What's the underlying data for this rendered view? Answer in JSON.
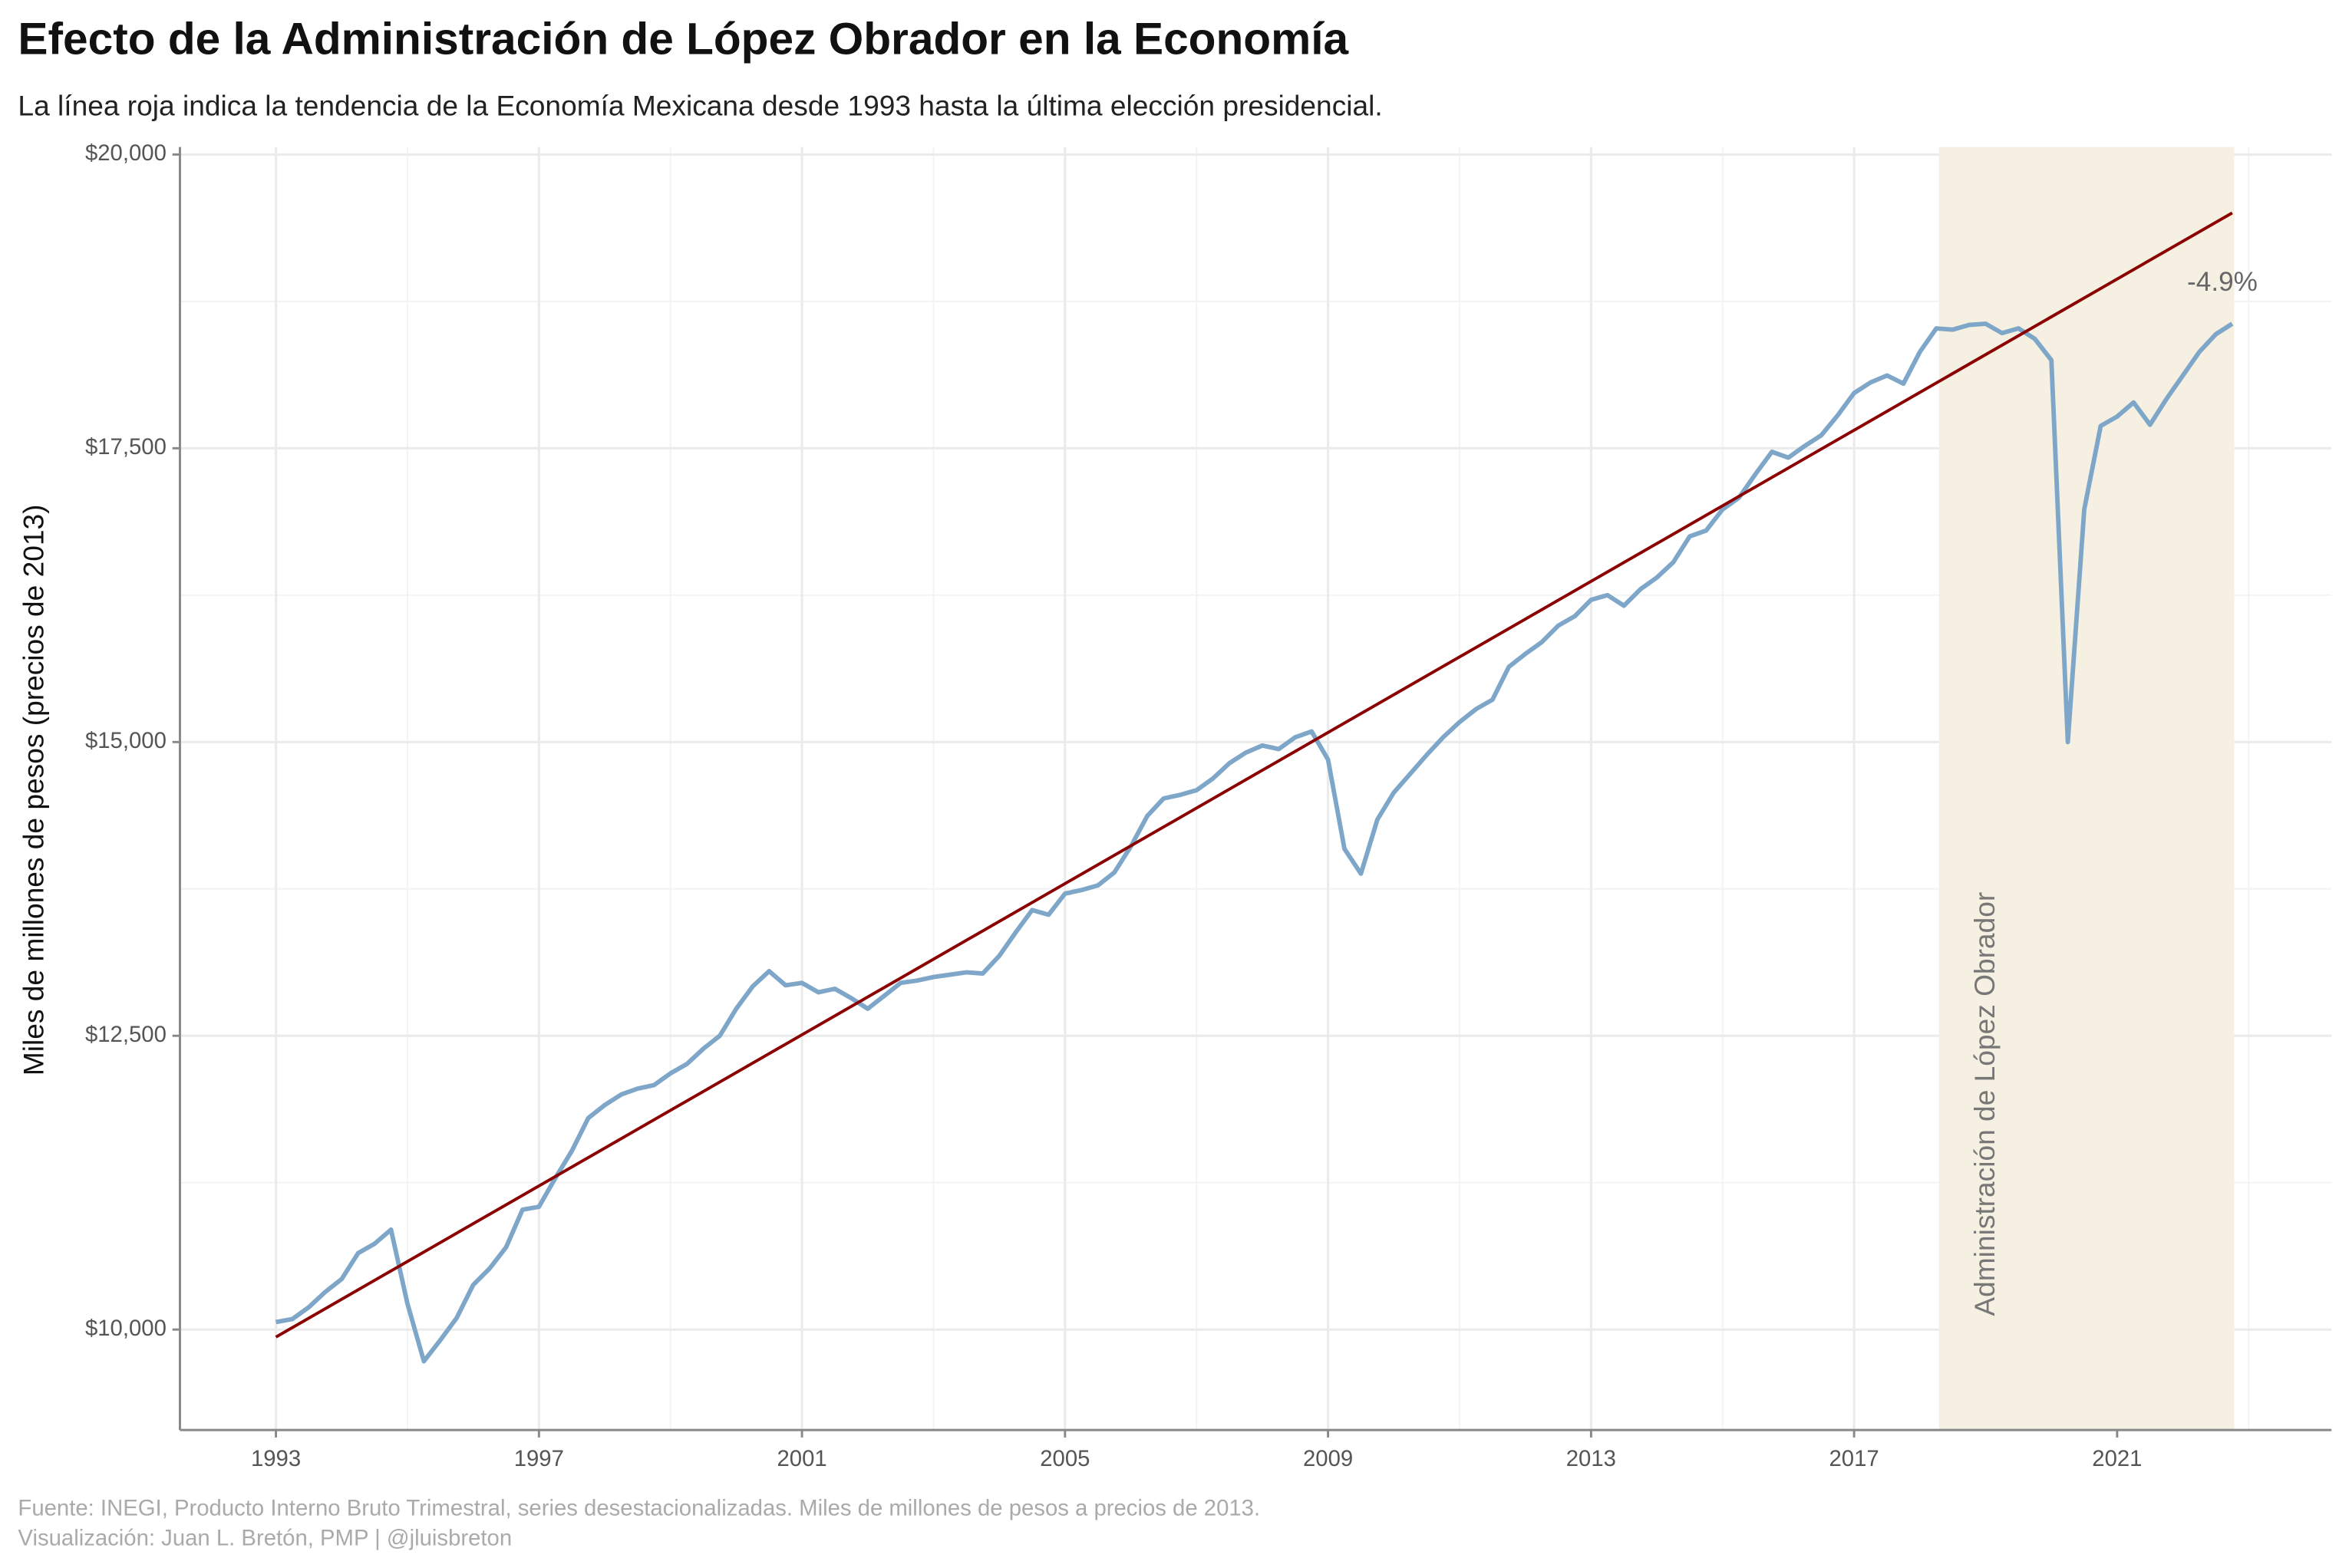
{
  "chart_data": {
    "type": "line",
    "title": "Efecto de la Administración de López Obrador en la Economía",
    "subtitle": "La línea roja indica la tendencia de la Economía Mexicana desde 1993 hasta la última elección presidencial.",
    "ylabel": "Miles de millones de pesos (precios de 2013)",
    "caption": [
      "Fuente: INEGI, Producto Interno Bruto Trimestral, series desestacionalizadas. Miles de millones de pesos a precios de 2013.",
      "Visualización: Juan L. Bretón, PMP | @jluisbreton"
    ],
    "xlim": [
      1991.54,
      2024.26
    ],
    "ylim": [
      9145,
      20064
    ],
    "xticks": [
      1993,
      1997,
      2001,
      2005,
      2009,
      2013,
      2017,
      2021
    ],
    "xminor": [
      1995,
      1999,
      2003,
      2007,
      2011,
      2015,
      2019,
      2023
    ],
    "yticks": [
      {
        "value": 10000,
        "label": "$10,000"
      },
      {
        "value": 12500,
        "label": "$12,500"
      },
      {
        "value": 15000,
        "label": "$15,000"
      },
      {
        "value": 17500,
        "label": "$17,500"
      },
      {
        "value": 20000,
        "label": "$20,000"
      }
    ],
    "yminor": [
      11250,
      13750,
      16250,
      18750
    ],
    "grid": true,
    "series": [
      {
        "color": "#7ea6c8",
        "x": [
          1993,
          1993.25,
          1993.5,
          1993.75,
          1994,
          1994.25,
          1994.5,
          1994.75,
          1995,
          1995.25,
          1995.5,
          1995.75,
          1996,
          1996.25,
          1996.5,
          1996.75,
          1997,
          1997.25,
          1997.5,
          1997.75,
          1998,
          1998.25,
          1998.5,
          1998.75,
          1999,
          1999.25,
          1999.5,
          1999.75,
          2000,
          2000.25,
          2000.5,
          2000.75,
          2001,
          2001.25,
          2001.5,
          2001.75,
          2002,
          2002.25,
          2002.5,
          2002.75,
          2003,
          2003.25,
          2003.5,
          2003.75,
          2004,
          2004.25,
          2004.5,
          2004.75,
          2005,
          2005.25,
          2005.5,
          2005.75,
          2006,
          2006.25,
          2006.5,
          2006.75,
          2007,
          2007.25,
          2007.5,
          2007.75,
          2008,
          2008.25,
          2008.5,
          2008.75,
          2009,
          2009.25,
          2009.5,
          2009.75,
          2010,
          2010.25,
          2010.5,
          2010.75,
          2011,
          2011.25,
          2011.5,
          2011.75,
          2012,
          2012.25,
          2012.5,
          2012.75,
          2013,
          2013.25,
          2013.5,
          2013.75,
          2014,
          2014.25,
          2014.5,
          2014.75,
          2015,
          2015.25,
          2015.5,
          2015.75,
          2016,
          2016.25,
          2016.5,
          2016.75,
          2017,
          2017.25,
          2017.5,
          2017.75,
          2018,
          2018.25,
          2018.5,
          2018.75,
          2019,
          2019.25,
          2019.5,
          2019.75,
          2020,
          2020.25,
          2020.5,
          2020.75,
          2021,
          2021.25,
          2021.5,
          2021.75,
          2022,
          2022.25,
          2022.5,
          2022.75
        ],
        "values": [
          10064,
          10089,
          10190,
          10320,
          10430,
          10650,
          10730,
          10850,
          10220,
          9730,
          9910,
          10100,
          10380,
          10520,
          10700,
          11020,
          11045,
          11290,
          11520,
          11800,
          11910,
          12000,
          12050,
          12080,
          12180,
          12260,
          12390,
          12500,
          12730,
          12920,
          13050,
          12930,
          12950,
          12870,
          12900,
          12820,
          12730,
          12840,
          12950,
          12970,
          13000,
          13020,
          13040,
          13030,
          13180,
          13380,
          13570,
          13530,
          13710,
          13740,
          13780,
          13890,
          14110,
          14370,
          14520,
          14550,
          14590,
          14690,
          14820,
          14910,
          14970,
          14940,
          15040,
          15090,
          14850,
          14090,
          13880,
          14340,
          14570,
          14730,
          14890,
          15040,
          15170,
          15280,
          15360,
          15640,
          15750,
          15850,
          15990,
          16070,
          16210,
          16250,
          16160,
          16300,
          16400,
          16530,
          16750,
          16800,
          16980,
          17080,
          17280,
          17470,
          17420,
          17520,
          17610,
          17780,
          17970,
          18060,
          18120,
          18050,
          18320,
          18520,
          18510,
          18550,
          18560,
          18480,
          18520,
          18430,
          18250,
          15000,
          16980,
          17690,
          17770,
          17890,
          17700,
          17920,
          18120,
          18320,
          18470,
          18560
        ]
      }
    ],
    "trend": {
      "color": "#8b0000",
      "x": [
        1993,
        2022.75
      ],
      "values": [
        9936,
        19503
      ]
    },
    "shade": {
      "xlim": [
        2018.29,
        2022.78
      ],
      "color": "#f5f0e1",
      "label": "Administración de López Obrador"
    },
    "annotation": {
      "text": "-4.9%",
      "x": 2022.6,
      "y": 18900
    }
  }
}
